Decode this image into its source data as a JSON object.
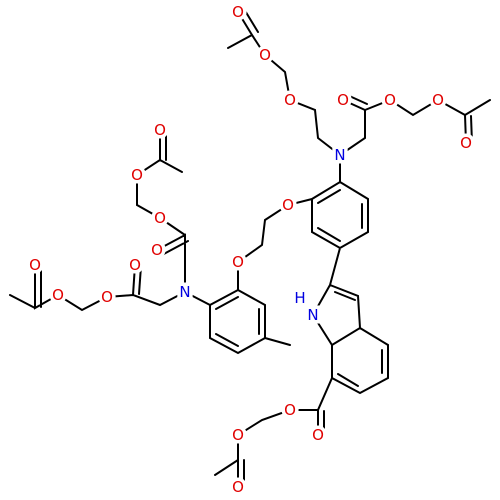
{
  "atom_labels": [
    "O",
    "O",
    "O",
    "O",
    "O",
    "O",
    "O",
    "N",
    "O",
    "O",
    "H",
    "N",
    "O",
    "O",
    "O",
    "O",
    "N",
    "O",
    "O",
    "O",
    "O",
    "O",
    "O",
    "O",
    "O"
  ]
}
